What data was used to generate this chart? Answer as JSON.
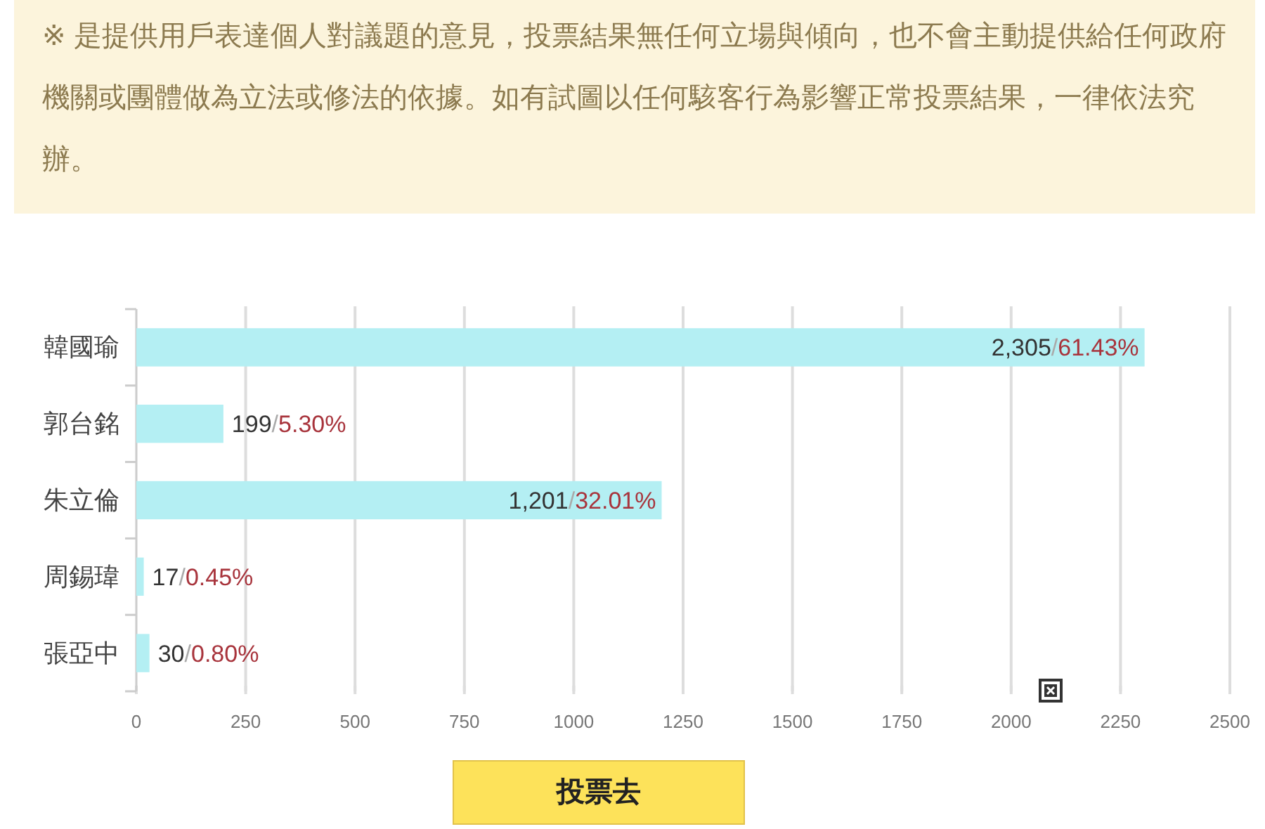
{
  "chart_data": {
    "type": "bar",
    "orientation": "horizontal",
    "categories": [
      "韓國瑜",
      "郭台銘",
      "朱立倫",
      "周錫瑋",
      "張亞中"
    ],
    "values": [
      2305,
      199,
      1201,
      17,
      30
    ],
    "value_labels": [
      "2,305/61.43%",
      "199/5.30%",
      "1,201/32.01%",
      "17/0.45%",
      "30/0.80%"
    ],
    "color": "#b4eff3",
    "xlim": [
      0,
      2500
    ],
    "xticks": [
      0,
      250,
      500,
      750,
      1000,
      1250,
      1500,
      1750,
      2000,
      2250,
      2500
    ],
    "grid": "x",
    "annotations": [
      "※ 是提供用戶表達個人對議題的意見，投票結果無任何立場與傾向，也不會主動提供給任何政府機關或團體做為立法或修法的依據。如有試圖以任何駭客行為影響正常投票結果，一律依法究辦。",
      "投票去"
    ]
  }
}
